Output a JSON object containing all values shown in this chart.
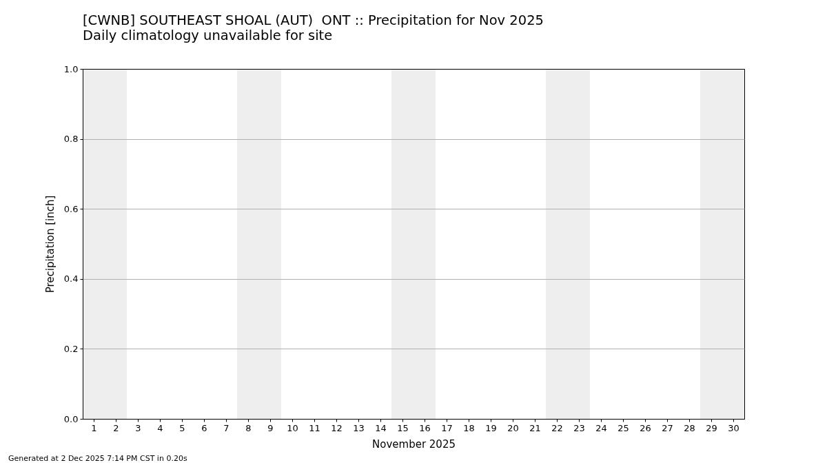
{
  "chart_data": {
    "type": "bar",
    "title": "[CWNB] SOUTHEAST SHOAL (AUT)  ONT :: Precipitation for Nov 2025",
    "subtitle": "Daily climatology unavailable for site",
    "xlabel": "November 2025",
    "ylabel": "Precipitation [inch]",
    "annotations": [
      "Generated at 2 Dec 2025 7:14 PM CST in 0.20s"
    ],
    "xlim": [
      0.5,
      30.5
    ],
    "xticks": [
      1,
      2,
      3,
      4,
      5,
      6,
      7,
      8,
      9,
      10,
      11,
      12,
      13,
      14,
      15,
      16,
      17,
      18,
      19,
      20,
      21,
      22,
      23,
      24,
      25,
      26,
      27,
      28,
      29,
      30
    ],
    "ylim": [
      0,
      1
    ],
    "yticks": [
      {
        "value": 0,
        "label": "0.0"
      },
      0.2,
      0.4,
      0.6,
      0.8,
      {
        "value": 1,
        "label": "1.0"
      }
    ],
    "grid": "y",
    "bands": [
      {
        "axis": "x",
        "from": 0.5,
        "to": 2.5,
        "color": "#eeeeee"
      },
      {
        "axis": "x",
        "from": 7.5,
        "to": 9.5,
        "color": "#eeeeee"
      },
      {
        "axis": "x",
        "from": 14.5,
        "to": 16.5,
        "color": "#eeeeee"
      },
      {
        "axis": "x",
        "from": 21.5,
        "to": 23.5,
        "color": "#eeeeee"
      },
      {
        "axis": "x",
        "from": 28.5,
        "to": 30.5,
        "color": "#eeeeee"
      }
    ]
  }
}
